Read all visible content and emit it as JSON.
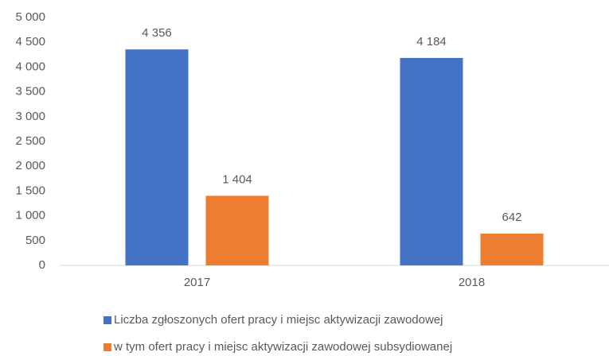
{
  "chart_data": {
    "type": "bar",
    "categories": [
      "2017",
      "2018"
    ],
    "series": [
      {
        "name": "Liczba zgłoszonych ofert pracy i miejsc aktywizacji zawodowej",
        "color": "#4472c4",
        "values": [
          4356,
          4184
        ],
        "value_labels": [
          "4 356",
          "4 184"
        ]
      },
      {
        "name": "w tym ofert pracy i miejsc aktywizacji zawodowej subsydiowanej",
        "color": "#ed7d31",
        "values": [
          1404,
          642
        ],
        "value_labels": [
          "1 404",
          "642"
        ]
      }
    ],
    "ylim": [
      0,
      5000
    ],
    "yticks": [
      0,
      500,
      {
        "value": 1000,
        "label": "1 000"
      },
      {
        "value": 1500,
        "label": "1 500"
      },
      {
        "value": 2000,
        "label": "2 000"
      },
      {
        "value": 2500,
        "label": "2 500"
      },
      {
        "value": 3000,
        "label": "3 000"
      },
      {
        "value": 3500,
        "label": "3 500"
      },
      {
        "value": 4000,
        "label": "4 000"
      },
      {
        "value": 4500,
        "label": "4 500"
      },
      {
        "value": 5000,
        "label": "5 000"
      }
    ],
    "grid": false,
    "legend": "bottom"
  }
}
